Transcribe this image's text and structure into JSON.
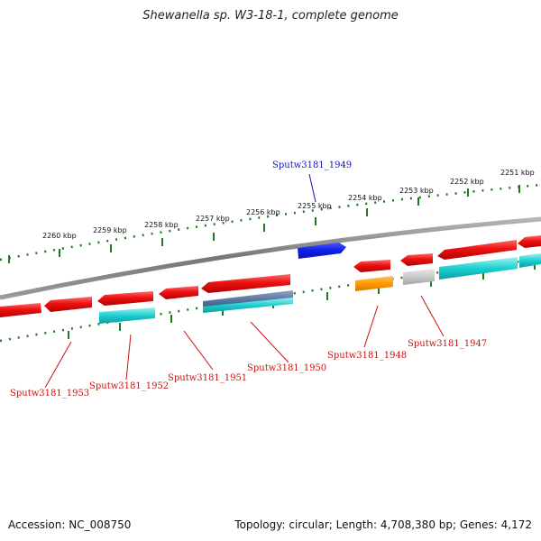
{
  "title": "Shewanella sp. W3-18-1, complete genome",
  "accession": "Accession: NC_008750",
  "summary": "Topology: circular; Length: 4,708,380 bp; Genes: 4,172",
  "colors": {
    "backbone": "#8c8c8c",
    "ticks": "#1e7a1e",
    "cds": "#ee1111",
    "tick_label": "#111111",
    "label_forward": "#1111cc",
    "label_reverse": "#cc1111"
  },
  "kbp_ticks": [
    "2251 kbp",
    "2252 kbp",
    "2253 kbp",
    "2254 kbp",
    "2255 kbp",
    "2256 kbp",
    "2257 kbp",
    "2258 kbp",
    "2259 kbp",
    "2260 kbp"
  ],
  "gene_labels": [
    "Sputw3181_1949",
    "Sputw3181_1953",
    "Sputw3181_1952",
    "Sputw3181_1951",
    "Sputw3181_1950",
    "Sputw3181_1948",
    "Sputw3181_1947"
  ]
}
